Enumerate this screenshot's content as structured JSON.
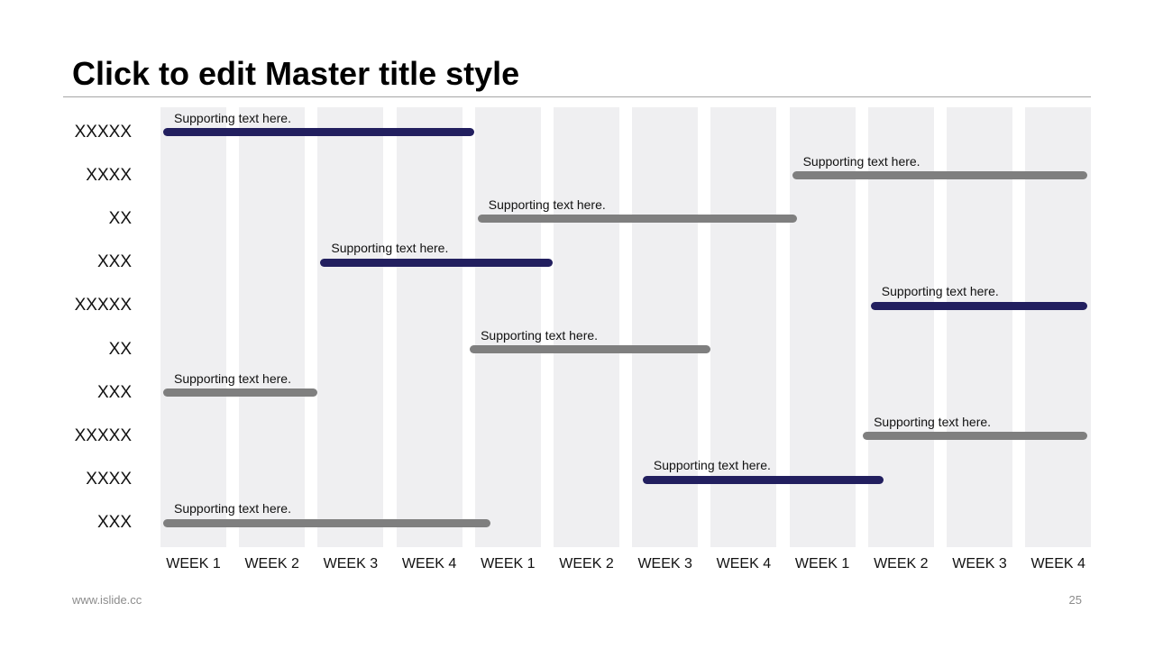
{
  "slide": {
    "title": "Click to edit Master title style",
    "footer_left": "www.islide.cc",
    "page_number": "25"
  },
  "colors": {
    "dark": "#221f5f",
    "gray": "#7f7f7f",
    "column": "#efeff1"
  },
  "chart_data": {
    "type": "gantt",
    "columns": [
      "WEEK 1",
      "WEEK 2",
      "WEEK 3",
      "WEEK 4",
      "WEEK 1",
      "WEEK 2",
      "WEEK 3",
      "WEEK 4",
      "WEEK 1",
      "WEEK 2",
      "WEEK 3",
      "WEEK 4"
    ],
    "rows": [
      {
        "label": "XXXXX",
        "text": "Supporting text here.",
        "start": 0.0,
        "end": 3.9,
        "color": "dark"
      },
      {
        "label": "XXXX",
        "text": "Supporting text here.",
        "start": 8.0,
        "end": 11.9,
        "color": "gray"
      },
      {
        "label": "XX",
        "text": "Supporting text here.",
        "start": 4.0,
        "end": 8.0,
        "color": "gray"
      },
      {
        "label": "XXX",
        "text": "Supporting text here.",
        "start": 2.0,
        "end": 4.9,
        "color": "dark"
      },
      {
        "label": "XXXXX",
        "text": "Supporting text here.",
        "start": 9.0,
        "end": 11.9,
        "color": "dark"
      },
      {
        "label": "XX",
        "text": "Supporting text here.",
        "start": 3.9,
        "end": 6.9,
        "color": "gray"
      },
      {
        "label": "XXX",
        "text": "Supporting text here.",
        "start": 0.0,
        "end": 1.9,
        "color": "gray"
      },
      {
        "label": "XXXXX",
        "text": "Supporting text here.",
        "start": 8.9,
        "end": 11.9,
        "color": "gray"
      },
      {
        "label": "XXXX",
        "text": "Supporting text here.",
        "start": 6.1,
        "end": 9.1,
        "color": "dark"
      },
      {
        "label": "XXX",
        "text": "Supporting text here.",
        "start": 0.0,
        "end": 4.1,
        "color": "gray"
      }
    ]
  }
}
